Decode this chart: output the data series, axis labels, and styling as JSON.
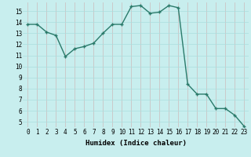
{
  "x": [
    0,
    1,
    2,
    3,
    4,
    5,
    6,
    7,
    8,
    9,
    10,
    11,
    12,
    13,
    14,
    15,
    16,
    17,
    18,
    19,
    20,
    21,
    22,
    23
  ],
  "y": [
    13.8,
    13.8,
    13.1,
    12.8,
    10.9,
    11.6,
    11.8,
    12.1,
    13.0,
    13.8,
    13.8,
    15.4,
    15.5,
    14.8,
    14.9,
    15.5,
    15.3,
    8.4,
    7.5,
    7.5,
    6.2,
    6.2,
    5.6,
    4.6
  ],
  "line_color": "#2a7a6a",
  "marker": "+",
  "markersize": 3.5,
  "linewidth": 1.0,
  "bg_color": "#c8eeee",
  "grid_color_v": "#ccbbbb",
  "grid_color_h": "#aadddd",
  "xlabel": "Humidex (Indice chaleur)",
  "xlabel_fontsize": 6.5,
  "xlim": [
    -0.5,
    23.5
  ],
  "ylim": [
    4.5,
    15.8
  ],
  "yticks": [
    5,
    6,
    7,
    8,
    9,
    10,
    11,
    12,
    13,
    14,
    15
  ],
  "xticks": [
    0,
    1,
    2,
    3,
    4,
    5,
    6,
    7,
    8,
    9,
    10,
    11,
    12,
    13,
    14,
    15,
    16,
    17,
    18,
    19,
    20,
    21,
    22,
    23
  ],
  "tick_fontsize": 5.5
}
